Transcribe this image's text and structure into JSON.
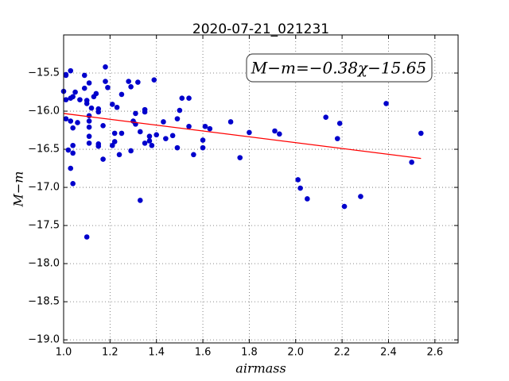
{
  "chart_data": {
    "type": "scatter",
    "title": "2020-07-21_021231",
    "x_label": "airmass",
    "y_label": "M−m",
    "annotation": "M−m=−0.38χ−15.65",
    "xlim": [
      1.0,
      2.7
    ],
    "ylim": [
      -19.04,
      -15.0
    ],
    "grid": true,
    "xticks": [
      {
        "value": 1,
        "label": "1.0"
      },
      1.2,
      1.4,
      1.6,
      1.8,
      {
        "value": 2,
        "label": "2.0"
      },
      2.2,
      2.4,
      2.6
    ],
    "yticks": [
      {
        "value": -15.5,
        "label": "−15.5"
      },
      {
        "value": -16,
        "label": "−16.0"
      },
      {
        "value": -16.5,
        "label": "−16.5"
      },
      {
        "value": -17,
        "label": "−17.0"
      },
      {
        "value": -17.5,
        "label": "−17.5"
      },
      {
        "value": -18,
        "label": "−18.0"
      },
      {
        "value": -18.5,
        "label": "−18.5"
      },
      {
        "value": -19,
        "label": "−19.0"
      }
    ],
    "series": [
      {
        "color": "#0000cc",
        "mode": "points",
        "x": [
          1.0,
          1.01,
          1.01,
          1.01,
          1.01,
          1.02,
          1.03,
          1.03,
          1.03,
          1.03,
          1.04,
          1.04,
          1.04,
          1.04,
          1.05,
          1.04,
          1.06,
          1.07,
          1.09,
          1.09,
          1.1,
          1.1,
          1.1,
          1.11,
          1.11,
          1.11,
          1.11,
          1.11,
          1.11,
          1.12,
          1.13,
          1.14,
          1.15,
          1.15,
          1.15,
          1.15,
          1.17,
          1.17,
          1.18,
          1.18,
          1.19,
          1.21,
          1.21,
          1.22,
          1.22,
          1.23,
          1.24,
          1.25,
          1.25,
          1.28,
          1.29,
          1.29,
          1.3,
          1.31,
          1.31,
          1.32,
          1.33,
          1.33,
          1.35,
          1.35,
          1.35,
          1.37,
          1.37,
          1.38,
          1.39,
          1.4,
          1.43,
          1.44,
          1.47,
          1.49,
          1.5,
          1.49,
          1.51,
          1.54,
          1.54,
          1.56,
          1.6,
          1.6,
          1.61,
          1.63,
          1.72,
          1.76,
          1.8,
          1.91,
          1.93,
          2.01,
          2.02,
          2.05,
          2.13,
          2.18,
          2.19,
          2.21,
          2.28,
          2.39,
          2.5,
          2.54
        ],
        "values": [
          -15.74,
          -15.53,
          -15.52,
          -16.1,
          -15.85,
          -16.51,
          -15.83,
          -15.47,
          -16.13,
          -16.75,
          -16.22,
          -16.45,
          -16.55,
          -16.95,
          -15.75,
          -15.81,
          -16.15,
          -15.85,
          -15.7,
          -15.53,
          -15.9,
          -15.86,
          -17.65,
          -15.63,
          -16.06,
          -16.13,
          -16.33,
          -16.21,
          -16.42,
          -15.96,
          -15.81,
          -15.77,
          -16.01,
          -16.43,
          -16.46,
          -15.97,
          -16.19,
          -16.63,
          -15.42,
          -15.61,
          -15.69,
          -16.45,
          -15.91,
          -16.29,
          -16.4,
          -15.95,
          -16.57,
          -16.29,
          -15.78,
          -15.61,
          -15.68,
          -16.52,
          -16.13,
          -16.17,
          -16.03,
          -15.62,
          -17.17,
          -16.27,
          -16.42,
          -15.98,
          -16.01,
          -16.39,
          -16.33,
          -16.45,
          -15.59,
          -16.31,
          -16.14,
          -16.36,
          -16.32,
          -16.48,
          -15.99,
          -16.1,
          -15.83,
          -15.83,
          -16.2,
          -16.57,
          -16.38,
          -16.48,
          -16.2,
          -16.23,
          -16.14,
          -16.61,
          -16.28,
          -16.26,
          -16.3,
          -16.9,
          -17.01,
          -17.15,
          -16.08,
          -16.36,
          -16.16,
          -17.25,
          -17.12,
          -15.9,
          -16.67,
          -16.29
        ]
      },
      {
        "color": "#ff0000",
        "mode": "line",
        "x": [
          1.0,
          2.54
        ],
        "values": [
          -16.03,
          -16.62
        ]
      }
    ]
  }
}
